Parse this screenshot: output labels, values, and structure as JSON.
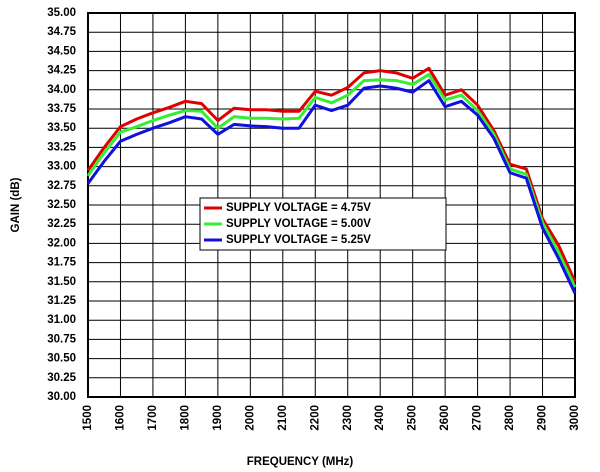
{
  "chart_data": {
    "type": "line",
    "xlabel": "FREQUENCY (MHz)",
    "ylabel": "GAIN (dB)",
    "x": [
      1500,
      1550,
      1600,
      1650,
      1700,
      1750,
      1800,
      1850,
      1900,
      1950,
      2000,
      2050,
      2100,
      2150,
      2200,
      2250,
      2300,
      2350,
      2400,
      2450,
      2500,
      2550,
      2600,
      2650,
      2700,
      2750,
      2800,
      2850,
      2900,
      2950,
      3000
    ],
    "series": [
      {
        "name": "SUPPLY VOLTAGE = 4.75V",
        "color": "#e00000",
        "values": [
          32.95,
          33.25,
          33.52,
          33.62,
          33.7,
          33.77,
          33.85,
          33.82,
          33.6,
          33.76,
          33.74,
          33.74,
          33.72,
          33.72,
          33.98,
          33.93,
          34.03,
          34.22,
          34.25,
          34.22,
          34.15,
          34.28,
          33.93,
          34.0,
          33.8,
          33.47,
          33.03,
          32.97,
          32.32,
          31.97,
          31.5
        ]
      },
      {
        "name": "SUPPLY VOLTAGE = 5.00V",
        "color": "#33ee33",
        "values": [
          32.88,
          33.18,
          33.45,
          33.52,
          33.6,
          33.67,
          33.73,
          33.72,
          33.5,
          33.65,
          33.63,
          33.63,
          33.62,
          33.63,
          33.9,
          33.83,
          33.93,
          34.12,
          34.13,
          34.12,
          34.07,
          34.2,
          33.87,
          33.93,
          33.73,
          33.42,
          32.97,
          32.9,
          32.27,
          31.88,
          31.43
        ]
      },
      {
        "name": "SUPPLY VOLTAGE = 5.25V",
        "color": "#1010e0",
        "values": [
          32.78,
          33.07,
          33.33,
          33.42,
          33.5,
          33.57,
          33.65,
          33.62,
          33.42,
          33.55,
          33.53,
          33.52,
          33.5,
          33.5,
          33.8,
          33.73,
          33.8,
          34.02,
          34.05,
          34.02,
          33.97,
          34.12,
          33.78,
          33.85,
          33.67,
          33.37,
          32.92,
          32.85,
          32.2,
          31.8,
          31.35
        ]
      }
    ],
    "xlim": [
      1500,
      3000
    ],
    "xticks": [
      1500,
      1600,
      1700,
      1800,
      1900,
      2000,
      2100,
      2200,
      2300,
      2400,
      2500,
      2600,
      2700,
      2800,
      2900,
      3000
    ],
    "ylim": [
      30,
      35
    ],
    "yticks": [
      {
        "value": 30,
        "label": "30.00"
      },
      {
        "value": 30.25,
        "label": "30.25"
      },
      {
        "value": 30.5,
        "label": "30.50"
      },
      {
        "value": 30.75,
        "label": "30.75"
      },
      {
        "value": 31,
        "label": "31.00"
      },
      {
        "value": 31.25,
        "label": "31.25"
      },
      {
        "value": 31.5,
        "label": "31.50"
      },
      {
        "value": 31.75,
        "label": "31.75"
      },
      {
        "value": 32,
        "label": "32.00"
      },
      {
        "value": 32.25,
        "label": "32.25"
      },
      {
        "value": 32.5,
        "label": "32.50"
      },
      {
        "value": 32.75,
        "label": "32.75"
      },
      {
        "value": 33,
        "label": "33.00"
      },
      {
        "value": 33.25,
        "label": "33.25"
      },
      {
        "value": 33.5,
        "label": "33.50"
      },
      {
        "value": 33.75,
        "label": "33.75"
      },
      {
        "value": 34,
        "label": "34.00"
      },
      {
        "value": 34.25,
        "label": "34.25"
      },
      {
        "value": 34.5,
        "label": "34.50"
      },
      {
        "value": 34.75,
        "label": "34.75"
      },
      {
        "value": 35,
        "label": "35.00"
      }
    ],
    "grid": true
  }
}
